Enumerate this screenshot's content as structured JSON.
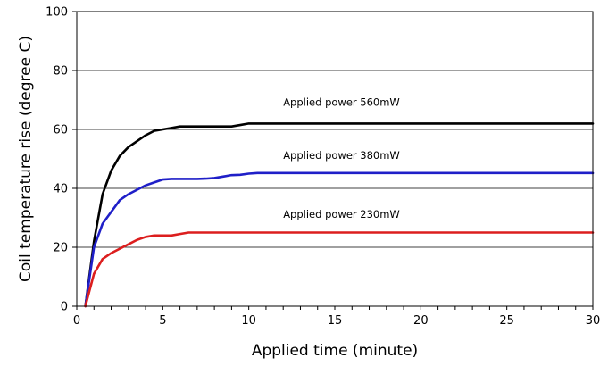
{
  "chart_data": {
    "type": "line",
    "title": "",
    "xlabel": "Applied time (minute)",
    "ylabel": "Coil temperature rise (degree C)",
    "xlim": [
      0,
      30
    ],
    "ylim": [
      0,
      100
    ],
    "x_ticks": [
      "0",
      "5",
      "10",
      "15",
      "20",
      "25",
      "30"
    ],
    "y_ticks": [
      "0",
      "20",
      "40",
      "60",
      "80",
      "100"
    ],
    "grid": "horizontal",
    "legend": "none",
    "series": [
      {
        "color": "#000000",
        "x": [
          0.5,
          1,
          1.5,
          2,
          2.5,
          3,
          3.5,
          4,
          4.5,
          5,
          5.5,
          6,
          6.5,
          7,
          8,
          9,
          9.5,
          10,
          10.5,
          12,
          15,
          20,
          25,
          30
        ],
        "y": [
          0,
          22,
          38,
          46,
          51,
          54,
          56,
          58,
          59.5,
          60,
          60.5,
          61,
          61,
          61,
          61,
          61,
          61.5,
          62,
          62,
          62,
          62,
          62,
          62,
          62
        ]
      },
      {
        "color": "#1f1fc8",
        "x": [
          0.5,
          1,
          1.5,
          2,
          2.5,
          3,
          3.5,
          4,
          4.5,
          5,
          5.5,
          6,
          6.5,
          7,
          7.5,
          8,
          8.5,
          9,
          9.5,
          10,
          10.5,
          12,
          15,
          20,
          25,
          30
        ],
        "y": [
          0,
          20,
          28,
          32,
          36,
          38,
          39.5,
          41,
          42,
          43,
          43.2,
          43.2,
          43.2,
          43.2,
          43.3,
          43.5,
          44,
          44.5,
          44.6,
          45,
          45.2,
          45.2,
          45.2,
          45.2,
          45.2,
          45.2
        ]
      },
      {
        "color": "#dc1e1e",
        "x": [
          0.5,
          1,
          1.5,
          2,
          2.5,
          3,
          3.5,
          4,
          4.5,
          5,
          5.5,
          6,
          6.5,
          7,
          10,
          15,
          20,
          25,
          30
        ],
        "y": [
          0,
          11,
          16,
          18,
          19.5,
          21,
          22.5,
          23.5,
          24,
          24,
          24,
          24.5,
          25,
          25,
          25,
          25,
          25,
          25,
          25
        ]
      }
    ],
    "annotations": [
      {
        "text": "Applied power 560mW",
        "x": 12,
        "y": 68
      },
      {
        "text": "Applied power 380mW",
        "x": 12,
        "y": 50
      },
      {
        "text": "Applied power 230mW",
        "x": 12,
        "y": 30
      }
    ]
  }
}
